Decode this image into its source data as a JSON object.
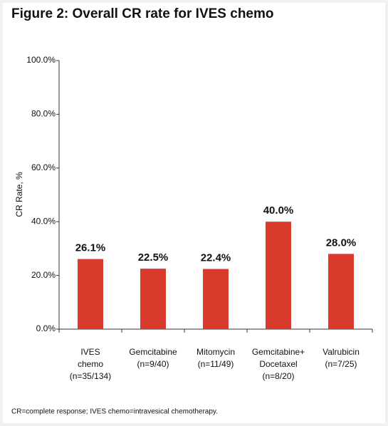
{
  "chart_data": {
    "type": "bar",
    "title": "Figure 2: Overall CR rate for IVES chemo",
    "y_label": "CR Rate, %",
    "categories": [
      [
        "IVES",
        "chemo",
        "(n=35/134)"
      ],
      [
        "Gemcitabine",
        "(n=9/40)"
      ],
      [
        "Mitomycin",
        "(n=11/49)"
      ],
      [
        "Gemcitabine+",
        "Docetaxel",
        "(n=8/20)"
      ],
      [
        "Valrubicin",
        "(n=7/25)"
      ]
    ],
    "values": [
      26.1,
      22.5,
      22.4,
      40.0,
      28.0
    ],
    "value_labels": [
      "26.1%",
      "22.5%",
      "22.4%",
      "40.0%",
      "28.0%"
    ],
    "color": "#d93a2b",
    "ylim": [
      0,
      100
    ],
    "yticks": [
      {
        "value": 0,
        "label": "0.0%"
      },
      {
        "value": 20,
        "label": "20.0%"
      },
      {
        "value": 40,
        "label": "40.0%"
      },
      {
        "value": 60,
        "label": "60.0%"
      },
      {
        "value": 80,
        "label": "80.0%"
      },
      {
        "value": 100,
        "label": "100.0%"
      }
    ],
    "footnote": "CR=complete response; IVES chemo=intravesical chemotherapy."
  }
}
